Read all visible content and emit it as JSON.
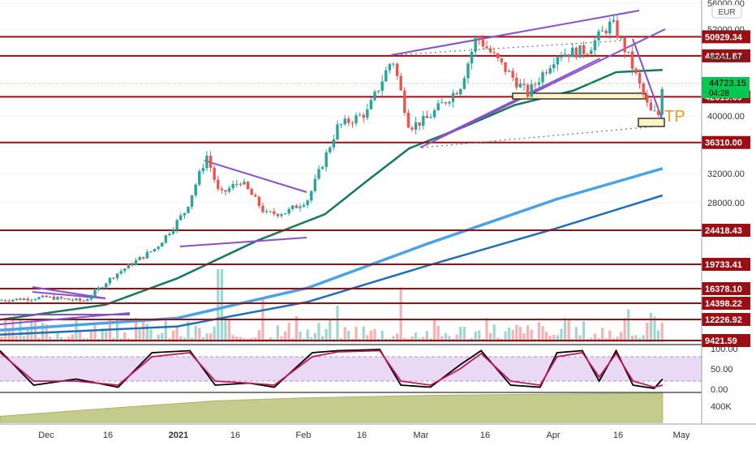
{
  "currency": "EUR",
  "live_price": {
    "value": "44723.15",
    "countdown": "04:28"
  },
  "annotation": "TP",
  "colors": {
    "up": "#26a69a",
    "down": "#ef5350",
    "level": "#9b0f14",
    "ema_fast": "#147a5c",
    "ema_mid": "#4aa3e6",
    "ema_slow": "#1f6fb5",
    "channel": "#8a4fc9",
    "stoch_k": "#000000",
    "stoch_d": "#c2185b",
    "stoch_band": "#ead9f5",
    "obv_fill": "#b9c47a",
    "tp": "#f39c12",
    "price_tag": "#00c853"
  },
  "levels": [
    "50929.34",
    "48241.87",
    "42619.69",
    "36310.00",
    "24418.43",
    "19733.41",
    "16378.10",
    "14398.22",
    "12226.92",
    "9421.59"
  ],
  "chart_data": {
    "type": "line",
    "title": "",
    "currency": "EUR",
    "price_axis_ticks": [
      "56000.00",
      "52000.00",
      "48000.00",
      "44000.00",
      "40000.00",
      "32000.00",
      "28000.00"
    ],
    "ylim": [
      8500,
      56000
    ],
    "x_axis_ticks": [
      "Dec",
      "16",
      "2021",
      "16",
      "Feb",
      "16",
      "Mar",
      "16",
      "Apr",
      "16",
      "May"
    ],
    "x_range": [
      "2020-11-20",
      "2021-05-02"
    ],
    "series": [
      {
        "key": "price",
        "x": [
          "2020-11-20",
          "2020-12-01",
          "2020-12-10",
          "2020-12-17",
          "2020-12-27",
          "2021-01-03",
          "2021-01-08",
          "2021-01-11",
          "2021-01-16",
          "2021-01-22",
          "2021-01-27",
          "2021-02-01",
          "2021-02-08",
          "2021-02-15",
          "2021-02-21",
          "2021-02-25",
          "2021-03-01",
          "2021-03-09",
          "2021-03-13",
          "2021-03-18",
          "2021-03-25",
          "2021-04-01",
          "2021-04-08",
          "2021-04-14",
          "2021-04-18",
          "2021-04-23",
          "2021-04-25",
          "2021-04-26"
        ],
        "values": [
          14800,
          15200,
          14700,
          18200,
          22000,
          27000,
          34500,
          29000,
          31000,
          26500,
          26800,
          28500,
          38500,
          40500,
          48000,
          38500,
          39500,
          44000,
          51000,
          47500,
          43000,
          48500,
          49000,
          53000,
          48000,
          40500,
          40200,
          44723
        ]
      },
      {
        "key": "ema_fast",
        "x": [
          "2020-11-20",
          "2020-12-15",
          "2021-01-01",
          "2021-01-20",
          "2021-02-05",
          "2021-02-15",
          "2021-02-25",
          "2021-03-10",
          "2021-03-22",
          "2021-04-05",
          "2021-04-15",
          "2021-04-26"
        ],
        "values": [
          12200,
          14200,
          17800,
          23000,
          26500,
          31000,
          35500,
          38500,
          41500,
          43500,
          46000,
          46300
        ]
      },
      {
        "key": "ema_mid",
        "x": [
          "2020-11-20",
          "2021-01-01",
          "2021-02-01",
          "2021-03-01",
          "2021-04-01",
          "2021-04-26"
        ],
        "values": [
          10800,
          12400,
          16500,
          22500,
          28500,
          32700
        ]
      },
      {
        "key": "ema_slow",
        "x": [
          "2020-11-20",
          "2021-01-01",
          "2021-02-01",
          "2021-03-01",
          "2021-04-01",
          "2021-04-26"
        ],
        "values": [
          10200,
          11300,
          14600,
          19500,
          24700,
          29000
        ]
      }
    ],
    "volume_spikes": [
      {
        "x": "2021-01-11",
        "rel": 1.0
      },
      {
        "x": "2021-01-21",
        "rel": 0.6
      },
      {
        "x": "2021-02-08",
        "rel": 0.5
      },
      {
        "x": "2021-02-23",
        "rel": 0.75
      },
      {
        "x": "2021-04-18",
        "rel": 0.45
      },
      {
        "x": "2021-04-23",
        "rel": 0.4
      }
    ],
    "stochastic": {
      "axis_ticks": [
        "100.00",
        "50.00",
        "0.00"
      ],
      "ylim": [
        0,
        100
      ],
      "x": [
        "2020-11-20",
        "2020-11-28",
        "2020-12-08",
        "2020-12-18",
        "2020-12-26",
        "2021-01-04",
        "2021-01-10",
        "2021-01-18",
        "2021-01-24",
        "2021-02-02",
        "2021-02-08",
        "2021-02-18",
        "2021-02-23",
        "2021-03-02",
        "2021-03-09",
        "2021-03-14",
        "2021-03-21",
        "2021-03-28",
        "2021-04-01",
        "2021-04-07",
        "2021-04-11",
        "2021-04-15",
        "2021-04-19",
        "2021-04-24",
        "2021-04-26"
      ],
      "k": [
        95,
        10,
        25,
        5,
        90,
        95,
        10,
        15,
        5,
        90,
        95,
        98,
        10,
        5,
        60,
        95,
        10,
        5,
        90,
        95,
        20,
        95,
        10,
        2,
        25
      ],
      "d": [
        90,
        20,
        20,
        10,
        80,
        90,
        20,
        15,
        10,
        80,
        92,
        95,
        20,
        10,
        50,
        88,
        20,
        10,
        80,
        90,
        30,
        88,
        20,
        5,
        10
      ]
    },
    "obv": {
      "axis_ticks": [
        "400K"
      ],
      "x": [
        "2020-11-20",
        "2020-12-20",
        "2021-01-10",
        "2021-02-01",
        "2021-03-01",
        "2021-04-01",
        "2021-04-26"
      ],
      "values": [
        20,
        50,
        70,
        80,
        88,
        92,
        95
      ]
    }
  }
}
